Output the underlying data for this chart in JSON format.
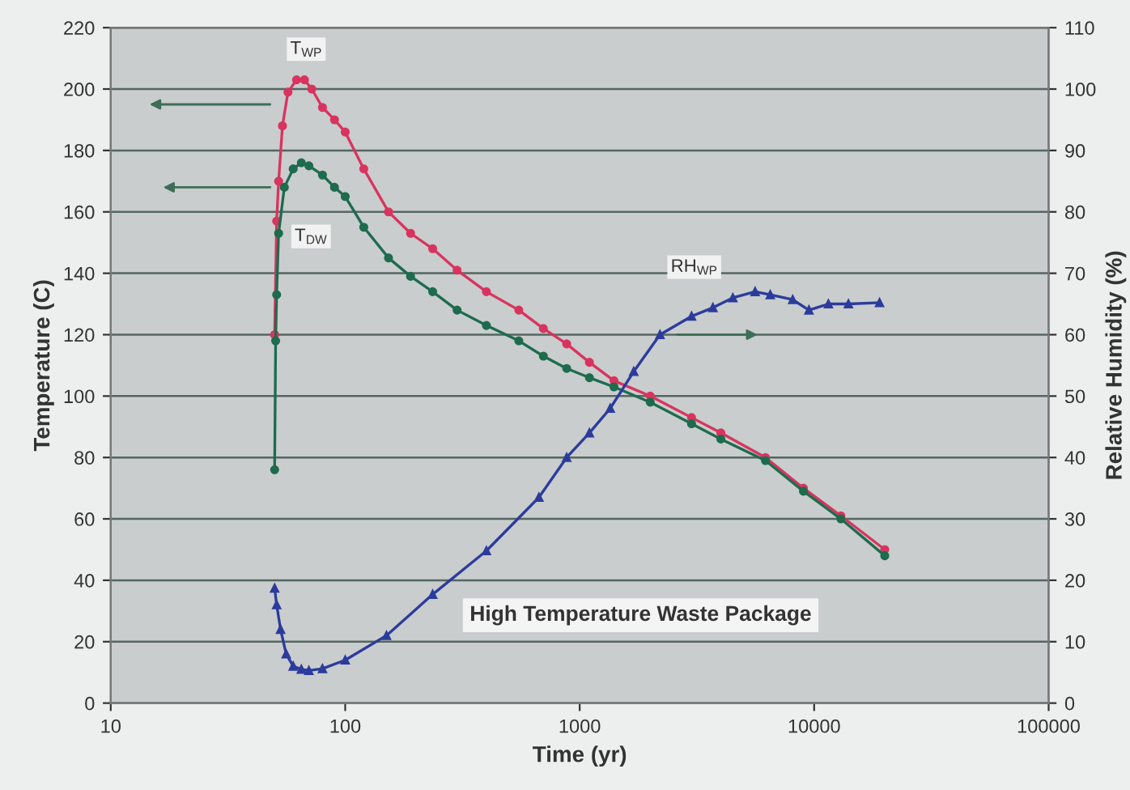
{
  "chart_data": {
    "type": "line",
    "xlabel": "Time (yr)",
    "ylabel": "Temperature (C)",
    "y2label": "Relative Humidity (%)",
    "log": "x",
    "xlim": [
      10,
      100000
    ],
    "xticks": [
      10,
      100,
      1000,
      10000,
      100000
    ],
    "ylim": [
      0,
      220
    ],
    "yticks": [
      0,
      20,
      40,
      60,
      80,
      100,
      120,
      140,
      160,
      180,
      200,
      220
    ],
    "y2lim": [
      0,
      110
    ],
    "y2ticks": [
      0,
      10,
      20,
      30,
      40,
      50,
      60,
      70,
      80,
      90,
      100,
      110
    ],
    "grid": "y",
    "annotations": [
      "High Temperature Waste Package"
    ],
    "series": [
      {
        "name": "T$_{WP}$",
        "color": "#d8345f",
        "marker": "circle",
        "x": [
          50,
          51,
          52,
          54,
          57,
          62,
          67,
          72,
          80,
          90,
          100,
          120,
          153,
          190,
          236,
          300,
          400,
          550,
          700,
          880,
          1100,
          1400,
          2000,
          3000,
          4000,
          6200,
          9000,
          13000,
          20000
        ],
        "values": [
          120,
          157,
          170,
          188,
          199,
          203,
          203,
          200,
          194,
          190,
          186,
          174,
          160,
          153,
          148,
          141,
          134,
          128,
          122,
          117,
          111,
          105,
          100,
          93,
          88,
          80,
          70,
          61,
          50
        ]
      },
      {
        "name": "T$_{DW}$",
        "color": "#1e6b4e",
        "marker": "circle",
        "x": [
          50,
          50.5,
          51,
          52,
          55,
          60,
          65,
          70,
          80,
          90,
          100,
          120,
          153,
          190,
          236,
          300,
          400,
          550,
          700,
          880,
          1100,
          1400,
          2000,
          3000,
          4000,
          6200,
          9000,
          13000,
          20000
        ],
        "values": [
          76,
          118,
          133,
          153,
          168,
          174,
          176,
          175,
          172,
          168,
          165,
          155,
          145,
          139,
          134,
          128,
          123,
          118,
          113,
          109,
          106,
          103,
          98,
          91,
          86,
          79,
          69,
          60,
          48
        ]
      },
      {
        "name": "RH$_{WP}$",
        "color": "#2c3c9c",
        "marker": "triangle",
        "axis": "y2",
        "x": [
          50,
          51,
          53,
          56,
          60,
          65,
          70,
          80,
          100,
          150,
          236,
          400,
          670,
          880,
          1100,
          1350,
          1700,
          2200,
          3000,
          3700,
          4500,
          5600,
          6500,
          8100,
          9500,
          11500,
          14000,
          19000
        ],
        "values": [
          18.7,
          16,
          12,
          8,
          6,
          5.5,
          5.3,
          5.6,
          7,
          11,
          17.7,
          24.8,
          33.5,
          40,
          44,
          48,
          54,
          60,
          63,
          64.4,
          66,
          67,
          66.5,
          65.7,
          64,
          65,
          65,
          65.2
        ]
      }
    ]
  }
}
